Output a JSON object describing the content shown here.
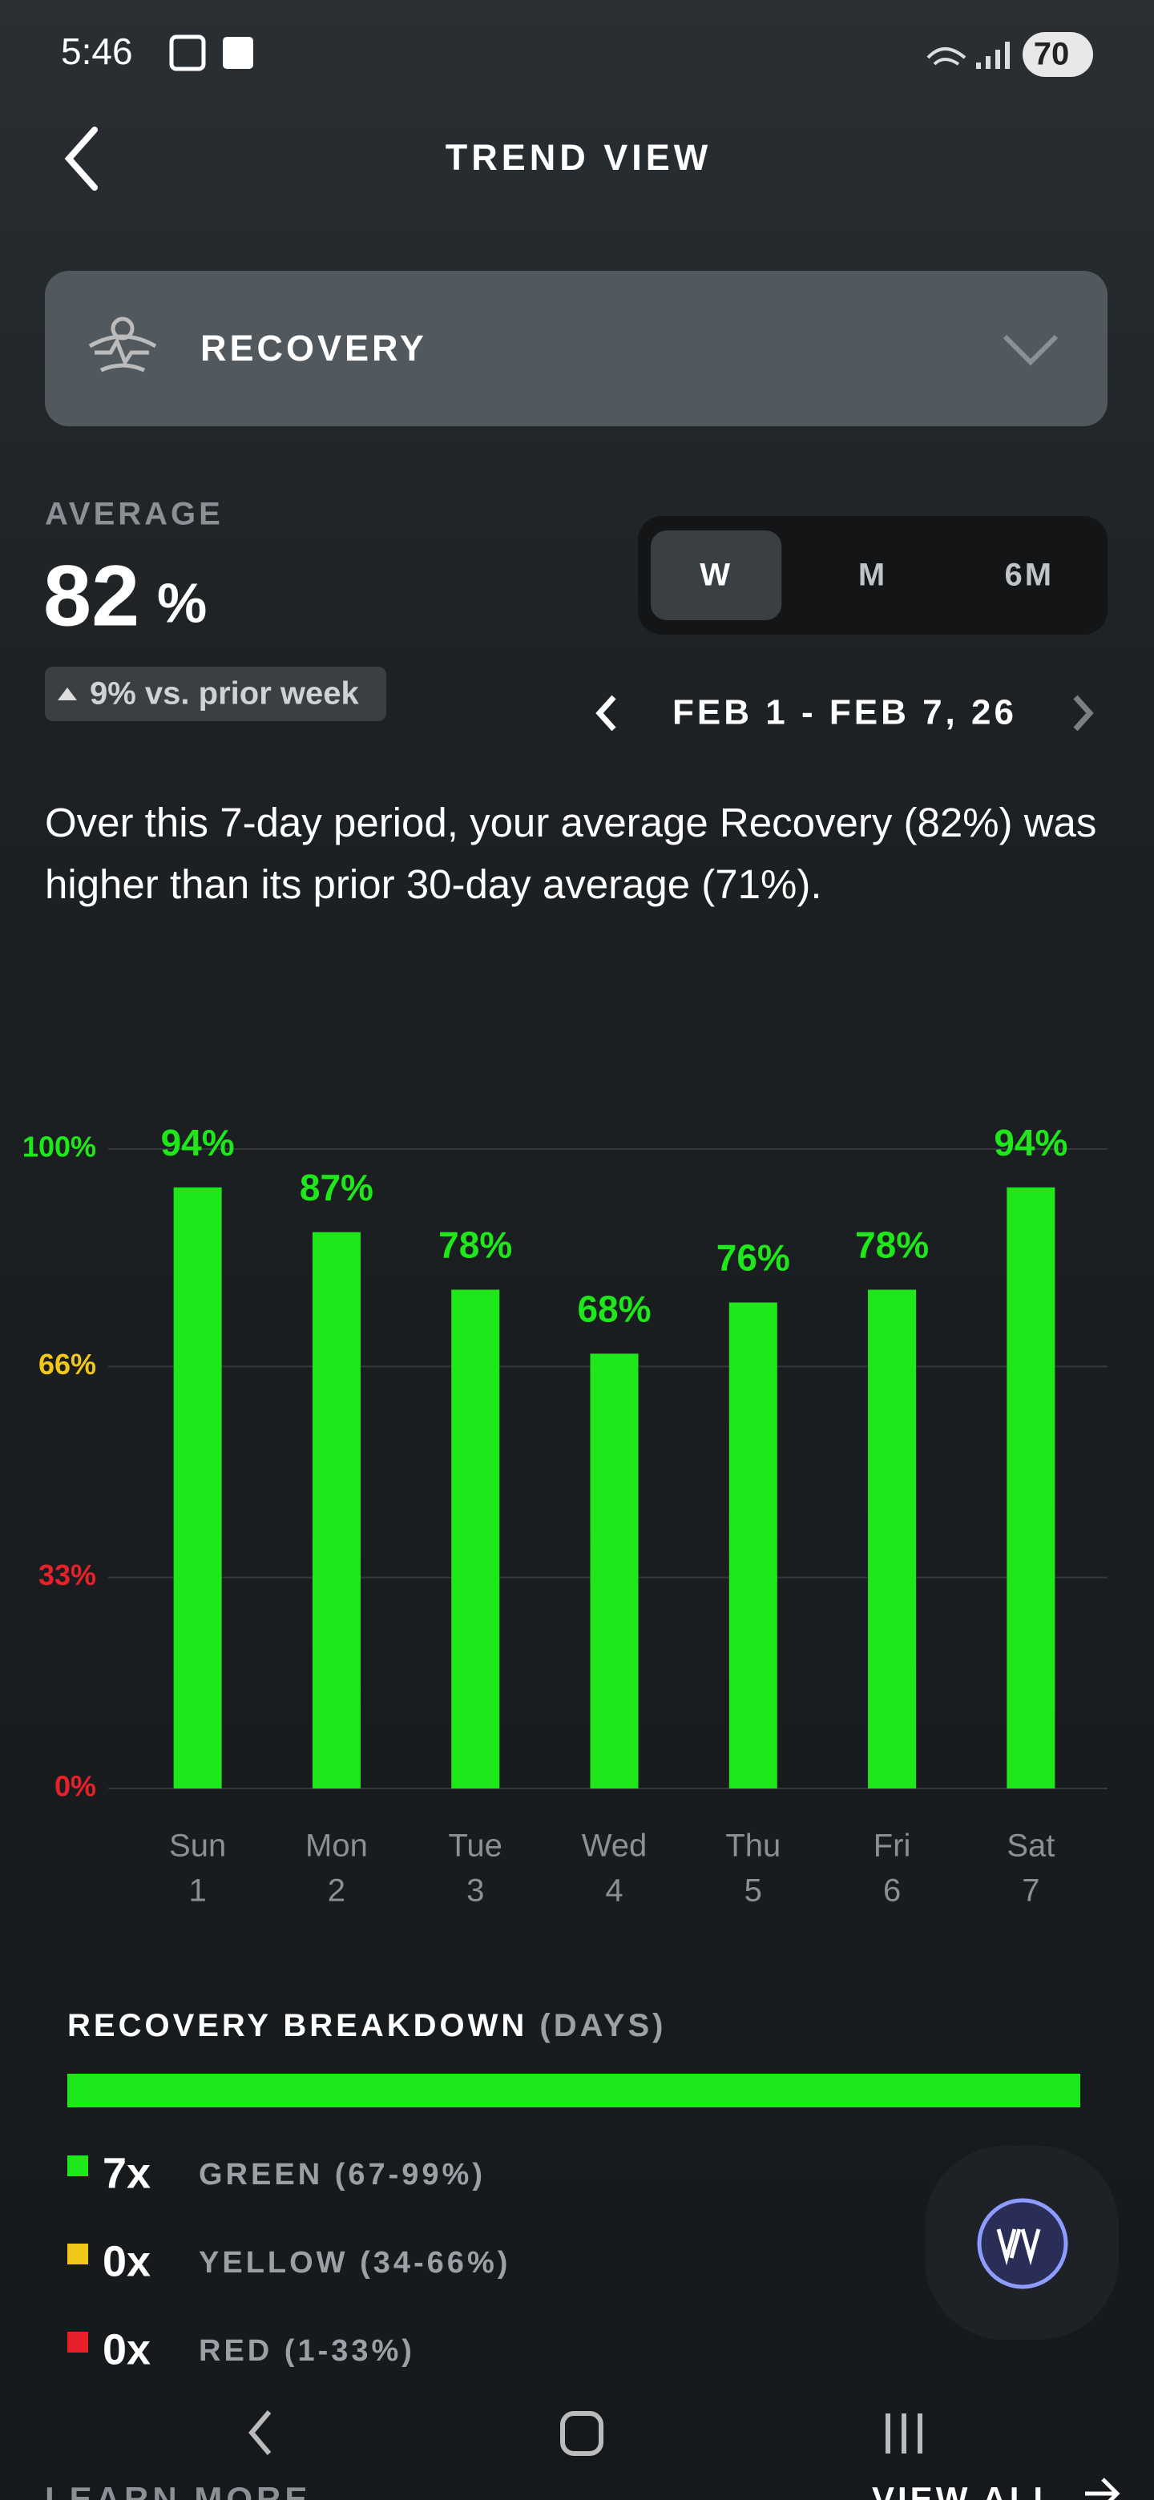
{
  "status_bar": {
    "time": "5:46",
    "battery": "70"
  },
  "header": {
    "title": "TREND VIEW"
  },
  "metric_selector": {
    "label": "RECOVERY"
  },
  "summary": {
    "label": "AVERAGE",
    "value": "82",
    "unit": "%",
    "change": "9% vs. prior week"
  },
  "period_tabs": {
    "options": [
      "W",
      "M",
      "6M"
    ],
    "selected": 0
  },
  "date_range": "FEB 1 - FEB 7, 26",
  "description": "Over this 7-day period, your average Recovery (82%) was higher than its prior 30-day average (71%).",
  "chart_data": {
    "type": "bar",
    "categories": [
      "Sun",
      "Mon",
      "Tue",
      "Wed",
      "Thu",
      "Fri",
      "Sat"
    ],
    "category_sublabels": [
      "1",
      "2",
      "3",
      "4",
      "5",
      "6",
      "7"
    ],
    "values": [
      94,
      87,
      78,
      68,
      76,
      78,
      94
    ],
    "value_labels": [
      "94%",
      "87%",
      "78%",
      "68%",
      "76%",
      "78%",
      "94%"
    ],
    "color": "#1ee81a",
    "ylim": [
      0,
      100
    ],
    "yticks": [
      {
        "value": 0,
        "label": "0%"
      },
      {
        "value": 33,
        "label": "33%"
      },
      {
        "value": 66,
        "label": "66%"
      },
      {
        "value": 100,
        "label": "100%"
      }
    ],
    "ytick_colors": [
      "#e8202a",
      "#e8202a",
      "#f2c818",
      "#1ee81a"
    ],
    "grid": true
  },
  "breakdown": {
    "title": "RECOVERY BREAKDOWN",
    "unit": "(DAYS)",
    "items": [
      {
        "count": 7,
        "count_label": "7x",
        "label": "GREEN (67-99%)",
        "color": "#1ee81a"
      },
      {
        "count": 0,
        "count_label": "0x",
        "label": "YELLOW (34-66%)",
        "color": "#f2c818"
      },
      {
        "count": 0,
        "count_label": "0x",
        "label": "RED (1-33%)",
        "color": "#e8202a"
      }
    ]
  },
  "footer": {
    "left": "LEARN MORE",
    "right": "VIEW ALL"
  }
}
